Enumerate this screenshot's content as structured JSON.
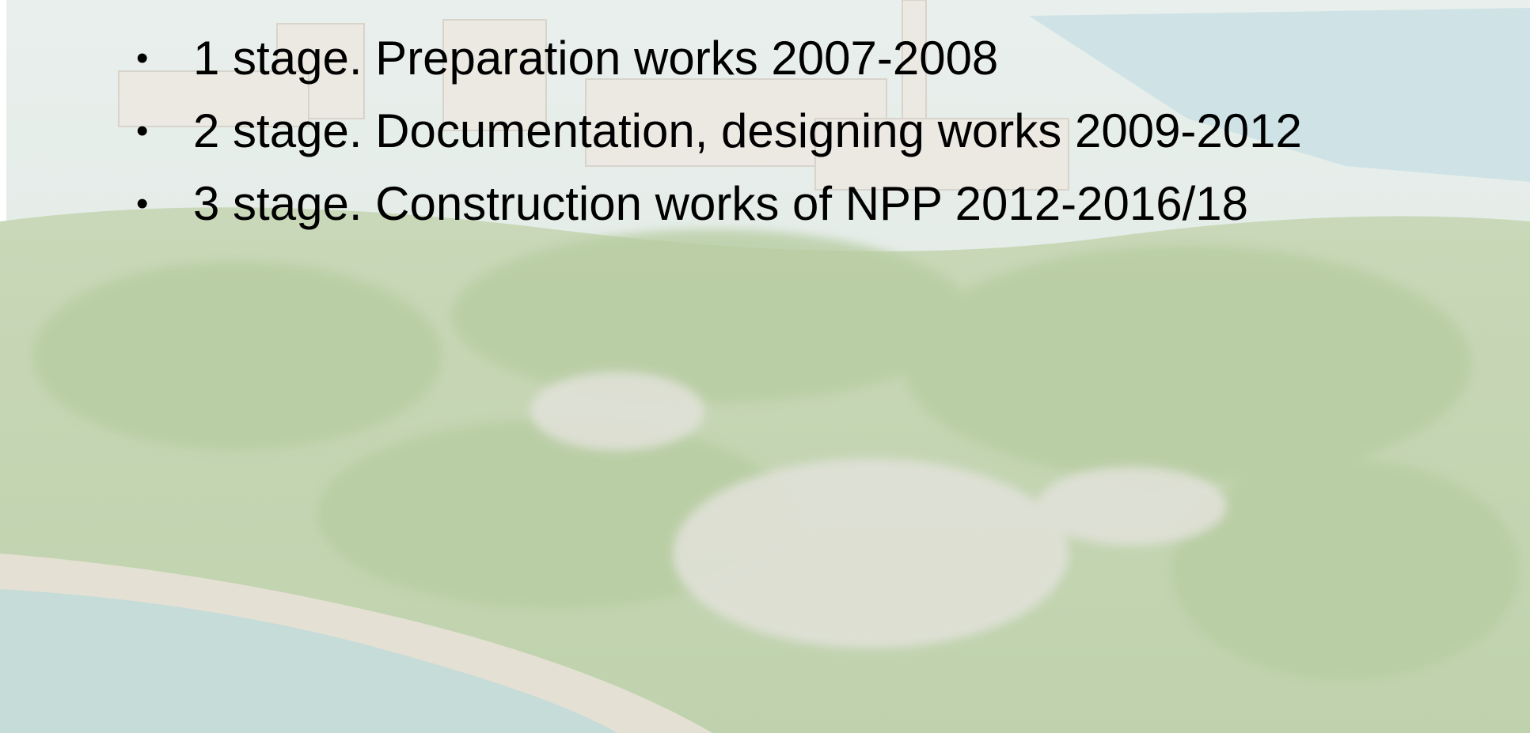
{
  "bullets": [
    "1 stage. Preparation works 2007-2008",
    "2 stage. Documentation, designing works 2009-2012",
    "3 stage. Construction works of NPP 2012-2016/18"
  ]
}
